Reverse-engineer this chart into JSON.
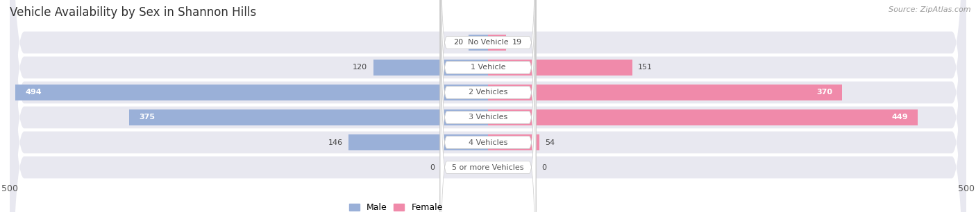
{
  "title": "Vehicle Availability by Sex in Shannon Hills",
  "source": "Source: ZipAtlas.com",
  "categories": [
    "No Vehicle",
    "1 Vehicle",
    "2 Vehicles",
    "3 Vehicles",
    "4 Vehicles",
    "5 or more Vehicles"
  ],
  "male_values": [
    20,
    120,
    494,
    375,
    146,
    0
  ],
  "female_values": [
    19,
    151,
    370,
    449,
    54,
    0
  ],
  "male_color": "#9ab0d8",
  "female_color": "#f08aaa",
  "male_label": "Male",
  "female_label": "Female",
  "bar_height": 0.62,
  "row_bg_color": "#e8e8f0",
  "center_label_bg": "#ffffff",
  "title_fontsize": 12,
  "source_fontsize": 8,
  "value_fontsize": 8,
  "cat_fontsize": 8,
  "tick_fontsize": 9,
  "bg_color": "#ffffff"
}
